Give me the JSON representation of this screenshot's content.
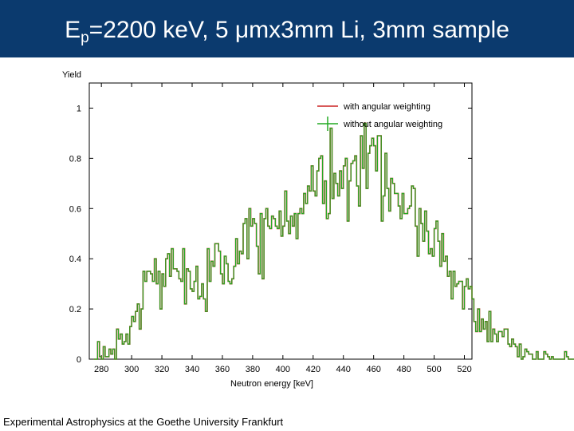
{
  "slide": {
    "title_prefix": "E",
    "title_sub": "p",
    "title_rest": "=2200 keV, 5 μmx3mm Li, 3mm sample",
    "footer": "Experimental Astrophysics at the Goethe University Frankfurt",
    "header_color": "#0b3a6e"
  },
  "chart_data": {
    "type": "line",
    "xlabel": "Neutron energy [keV]",
    "ylabel": "Yield",
    "xlim": [
      272,
      525
    ],
    "ylim": [
      0,
      1.1
    ],
    "xticks": [
      "280",
      "300",
      "320",
      "340",
      "360",
      "380",
      "400",
      "420",
      "440",
      "460",
      "480",
      "500",
      "520"
    ],
    "yticks": [
      "0",
      "0.2",
      "0.4",
      "0.6",
      "0.8",
      "1"
    ],
    "grid": false,
    "legend_position": "top-right",
    "step": 1.25,
    "x_start": 275,
    "series": [
      {
        "name": "with angular weighting",
        "color": "#cc2222",
        "values": [
          0,
          0.0,
          0.07,
          0.01,
          0.0,
          0.05,
          0.01,
          0.01,
          0.04,
          0.02,
          0.04,
          0.0,
          0.12,
          0.08,
          0.1,
          0.06,
          0.07,
          0.1,
          0.06,
          0.13,
          0.17,
          0.15,
          0.19,
          0.22,
          0.12,
          0.2,
          0.35,
          0.31,
          0.35,
          0.35,
          0.34,
          0.31,
          0.4,
          0.3,
          0.35,
          0.2,
          0.34,
          0.29,
          0.4,
          0.42,
          0.33,
          0.44,
          0.36,
          0.36,
          0.35,
          0.32,
          0.31,
          0.44,
          0.22,
          0.36,
          0.35,
          0.28,
          0.27,
          0.31,
          0.37,
          0.24,
          0.25,
          0.3,
          0.24,
          0.19,
          0.44,
          0.31,
          0.39,
          0.37,
          0.46,
          0.46,
          0.43,
          0.34,
          0.3,
          0.41,
          0.38,
          0.31,
          0.3,
          0.32,
          0.37,
          0.48,
          0.38,
          0.43,
          0.42,
          0.54,
          0.56,
          0.4,
          0.6,
          0.53,
          0.56,
          0.54,
          0.45,
          0.34,
          0.58,
          0.32,
          0.56,
          0.6,
          0.53,
          0.52,
          0.57,
          0.56,
          0.53,
          0.52,
          0.59,
          0.49,
          0.53,
          0.67,
          0.55,
          0.5,
          0.57,
          0.53,
          0.58,
          0.48,
          0.58,
          0.6,
          0.58,
          0.66,
          0.62,
          0.69,
          0.67,
          0.77,
          0.67,
          0.65,
          0.75,
          0.8,
          0.81,
          0.62,
          0.71,
          0.56,
          0.58,
          0.92,
          0.64,
          0.74,
          0.7,
          0.65,
          0.75,
          0.68,
          0.77,
          0.8,
          0.55,
          0.71,
          0.78,
          0.79,
          0.81,
          0.69,
          0.61,
          0.89,
          0.76,
          0.94,
          0.68,
          0.82,
          0.85,
          0.88,
          0.85,
          0.75,
          0.89,
          0.89,
          0.55,
          0.65,
          0.82,
          0.68,
          0.59,
          0.72,
          0.7,
          0.66,
          0.66,
          0.61,
          0.56,
          0.66,
          0.58,
          0.58,
          0.6,
          0.61,
          0.69,
          0.68,
          0.53,
          0.41,
          0.6,
          0.54,
          0.47,
          0.59,
          0.51,
          0.42,
          0.44,
          0.41,
          0.52,
          0.55,
          0.47,
          0.37,
          0.5,
          0.39,
          0.41,
          0.33,
          0.35,
          0.24,
          0.35,
          0.29,
          0.3,
          0.31,
          0.31,
          0.2,
          0.29,
          0.32,
          0.28,
          0.29,
          0.24,
          0.15,
          0.11,
          0.2,
          0.11,
          0.16,
          0.12,
          0.15,
          0.07,
          0.19,
          0.07,
          0.12,
          0.1,
          0.07,
          0.11,
          0.11,
          0.09,
          0.12,
          0.12,
          0.06,
          0.05,
          0.08,
          0.06,
          0.05,
          0.01,
          0.06,
          0.0,
          0.01,
          0.04,
          0.03,
          0.02,
          0.02,
          0.0,
          0.0,
          0.03,
          0.0,
          0.0,
          0.0,
          0.03,
          0.02,
          0.01,
          0.0,
          0.01,
          0.0,
          0.0,
          0.0,
          0.0,
          0.0,
          0.0,
          0.03,
          0.01,
          0.0,
          0.0,
          0.0,
          0.0,
          0.03
        ]
      },
      {
        "name": "without angular weighting",
        "color": "#22aa22",
        "values": [
          0,
          0.0,
          0.07,
          0.01,
          0.0,
          0.05,
          0.01,
          0.01,
          0.04,
          0.02,
          0.04,
          0.0,
          0.12,
          0.08,
          0.1,
          0.06,
          0.07,
          0.1,
          0.06,
          0.13,
          0.17,
          0.15,
          0.19,
          0.22,
          0.12,
          0.2,
          0.35,
          0.31,
          0.35,
          0.35,
          0.34,
          0.31,
          0.4,
          0.3,
          0.35,
          0.2,
          0.34,
          0.29,
          0.4,
          0.42,
          0.33,
          0.44,
          0.36,
          0.36,
          0.35,
          0.32,
          0.31,
          0.44,
          0.22,
          0.36,
          0.35,
          0.28,
          0.27,
          0.31,
          0.37,
          0.24,
          0.25,
          0.3,
          0.24,
          0.19,
          0.44,
          0.31,
          0.39,
          0.37,
          0.46,
          0.46,
          0.43,
          0.34,
          0.3,
          0.41,
          0.38,
          0.31,
          0.3,
          0.32,
          0.37,
          0.48,
          0.38,
          0.43,
          0.42,
          0.54,
          0.56,
          0.4,
          0.6,
          0.53,
          0.56,
          0.54,
          0.45,
          0.34,
          0.58,
          0.32,
          0.56,
          0.6,
          0.53,
          0.52,
          0.57,
          0.56,
          0.53,
          0.52,
          0.59,
          0.49,
          0.53,
          0.67,
          0.55,
          0.5,
          0.57,
          0.53,
          0.58,
          0.48,
          0.58,
          0.6,
          0.58,
          0.66,
          0.62,
          0.69,
          0.67,
          0.77,
          0.67,
          0.65,
          0.75,
          0.8,
          0.81,
          0.62,
          0.71,
          0.56,
          0.58,
          0.92,
          0.64,
          0.74,
          0.7,
          0.65,
          0.75,
          0.68,
          0.77,
          0.8,
          0.55,
          0.71,
          0.78,
          0.79,
          0.81,
          0.69,
          0.61,
          0.89,
          0.76,
          0.94,
          0.68,
          0.82,
          0.85,
          0.88,
          0.85,
          0.75,
          0.89,
          0.89,
          0.55,
          0.65,
          0.82,
          0.68,
          0.59,
          0.72,
          0.7,
          0.66,
          0.66,
          0.61,
          0.56,
          0.66,
          0.58,
          0.58,
          0.6,
          0.61,
          0.69,
          0.68,
          0.53,
          0.41,
          0.6,
          0.54,
          0.47,
          0.59,
          0.51,
          0.42,
          0.44,
          0.41,
          0.52,
          0.55,
          0.47,
          0.37,
          0.5,
          0.39,
          0.41,
          0.33,
          0.35,
          0.24,
          0.35,
          0.29,
          0.3,
          0.31,
          0.31,
          0.2,
          0.29,
          0.32,
          0.28,
          0.29,
          0.24,
          0.15,
          0.11,
          0.2,
          0.11,
          0.16,
          0.12,
          0.15,
          0.07,
          0.19,
          0.07,
          0.12,
          0.1,
          0.07,
          0.11,
          0.11,
          0.09,
          0.12,
          0.12,
          0.06,
          0.05,
          0.08,
          0.06,
          0.05,
          0.01,
          0.06,
          0.0,
          0.01,
          0.04,
          0.03,
          0.02,
          0.02,
          0.0,
          0.0,
          0.03,
          0.0,
          0.0,
          0.0,
          0.03,
          0.02,
          0.01,
          0.0,
          0.01,
          0.0,
          0.0,
          0.0,
          0.0,
          0.0,
          0.0,
          0.03,
          0.01,
          0.0,
          0.0,
          0.0,
          0.0,
          0.03
        ]
      }
    ]
  }
}
